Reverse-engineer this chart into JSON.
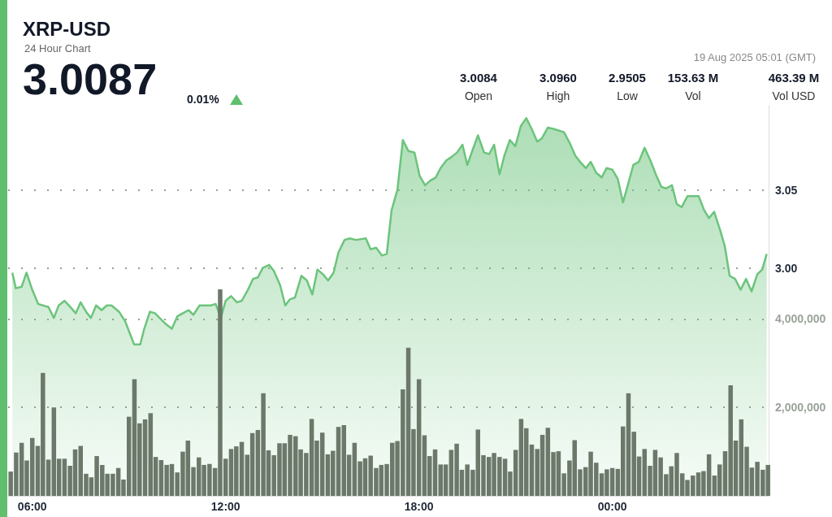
{
  "chart_data": {
    "type": "area",
    "title": "XRP-USD",
    "subtitle": "24 Hour Chart",
    "annotations": [
      "3.0087",
      "0.01%",
      "19 Aug 2025 05:01 (GMT)",
      "3.0084",
      "Open",
      "3.0960",
      "High",
      "2.9505",
      "Low",
      "153.63 M",
      "Vol",
      "463.39 M",
      "Vol USD"
    ],
    "xlim": [
      5.25,
      28.85
    ],
    "xticks": [
      {
        "value": 6,
        "label": "06:00"
      },
      {
        "value": 12,
        "label": "12:00"
      },
      {
        "value": 18,
        "label": "18:00"
      },
      {
        "value": 24,
        "label": "00:00"
      }
    ],
    "ylim": [
      2.854,
      3.104
    ],
    "yticks": [
      {
        "value": 3,
        "label": "3.00"
      },
      3.05
    ],
    "y2lim": [
      0,
      8825000
    ],
    "y2ticks": [
      {
        "value": 2000000,
        "label": "2,000,000"
      },
      {
        "value": 4000000,
        "label": "4,000,000"
      }
    ],
    "grid": "y",
    "series": [
      {
        "color": "#6cc47c",
        "x": [
          5.38,
          5.49,
          5.67,
          5.82,
          6.0,
          6.18,
          6.5,
          6.67,
          6.82,
          7.0,
          7.18,
          7.35,
          7.5,
          7.67,
          7.82,
          7.98,
          8.15,
          8.31,
          8.46,
          8.69,
          8.88,
          9.16,
          9.35,
          9.46,
          9.65,
          9.81,
          10.0,
          10.15,
          10.33,
          10.5,
          10.67,
          10.85,
          11.0,
          11.19,
          11.38,
          11.54,
          11.69,
          11.85,
          12.0,
          12.17,
          12.35,
          12.5,
          12.69,
          12.85,
          13.0,
          13.15,
          13.35,
          13.5,
          13.69,
          13.85,
          14.0,
          14.15,
          14.35,
          14.52,
          14.69,
          14.85,
          15.02,
          15.18,
          15.35,
          15.5,
          15.69,
          15.85,
          16.04,
          16.35,
          16.5,
          16.67,
          16.85,
          17.0,
          17.15,
          17.33,
          17.5,
          17.67,
          17.86,
          18.02,
          18.19,
          18.35,
          18.52,
          18.67,
          18.85,
          19.0,
          19.18,
          19.35,
          19.5,
          19.67,
          19.83,
          20.02,
          20.18,
          20.33,
          20.5,
          20.65,
          20.82,
          20.99,
          21.16,
          21.33,
          21.5,
          21.67,
          21.81,
          22.0,
          22.19,
          22.35,
          22.5,
          22.68,
          22.85,
          23.0,
          23.18,
          23.33,
          23.5,
          23.67,
          23.82,
          24.0,
          24.17,
          24.33,
          24.48,
          24.65,
          24.82,
          25.0,
          25.18,
          25.35,
          25.52,
          25.67,
          25.85,
          26.0,
          26.15,
          26.33,
          26.5,
          26.68,
          26.85,
          27.0,
          27.16,
          27.35,
          27.49,
          27.64,
          27.81,
          27.98,
          28.15,
          28.32,
          28.5,
          28.65,
          28.79
        ],
        "values": [
          2.997,
          2.987,
          2.988,
          2.997,
          2.986,
          2.977,
          2.975,
          2.968,
          2.976,
          2.979,
          2.975,
          2.971,
          2.978,
          2.972,
          2.968,
          2.976,
          2.973,
          2.976,
          2.976,
          2.972,
          2.966,
          2.951,
          2.951,
          2.96,
          2.972,
          2.971,
          2.967,
          2.964,
          2.961,
          2.969,
          2.971,
          2.973,
          2.97,
          2.976,
          2.976,
          2.976,
          2.977,
          2.968,
          2.979,
          2.982,
          2.978,
          2.979,
          2.986,
          2.993,
          2.994,
          3.0,
          3.002,
          2.998,
          2.989,
          2.976,
          2.98,
          2.981,
          2.995,
          2.992,
          2.983,
          2.999,
          2.996,
          2.992,
          2.997,
          3.01,
          3.018,
          3.019,
          3.018,
          3.019,
          3.012,
          3.013,
          3.008,
          3.009,
          3.037,
          3.05,
          3.082,
          3.075,
          3.074,
          3.059,
          3.053,
          3.056,
          3.058,
          3.064,
          3.069,
          3.071,
          3.074,
          3.079,
          3.066,
          3.076,
          3.085,
          3.074,
          3.073,
          3.079,
          3.06,
          3.072,
          3.082,
          3.078,
          3.091,
          3.096,
          3.089,
          3.081,
          3.083,
          3.09,
          3.089,
          3.088,
          3.087,
          3.08,
          3.072,
          3.068,
          3.064,
          3.068,
          3.061,
          3.058,
          3.064,
          3.063,
          3.057,
          3.042,
          3.053,
          3.066,
          3.068,
          3.077,
          3.069,
          3.06,
          3.052,
          3.051,
          3.053,
          3.041,
          3.039,
          3.046,
          3.046,
          3.046,
          3.037,
          3.032,
          3.036,
          3.024,
          3.014,
          2.995,
          2.993,
          2.986,
          2.993,
          2.985,
          2.996,
          2.999,
          3.009
        ]
      },
      {
        "type": "bar",
        "axis": "y2",
        "color": "#6b786a",
        "x": [
          5.33,
          5.5,
          5.67,
          5.83,
          6,
          6.17,
          6.33,
          6.5,
          6.67,
          6.83,
          7,
          7.17,
          7.33,
          7.5,
          7.67,
          7.83,
          8,
          8.17,
          8.33,
          8.5,
          8.67,
          8.83,
          9,
          9.17,
          9.33,
          9.5,
          9.67,
          9.83,
          10,
          10.17,
          10.33,
          10.5,
          10.67,
          10.83,
          11,
          11.17,
          11.33,
          11.5,
          11.67,
          11.83,
          12,
          12.17,
          12.33,
          12.5,
          12.67,
          12.83,
          13,
          13.17,
          13.33,
          13.5,
          13.67,
          13.83,
          14,
          14.17,
          14.33,
          14.5,
          14.67,
          14.83,
          15,
          15.17,
          15.33,
          15.5,
          15.67,
          15.83,
          16,
          16.17,
          16.33,
          16.5,
          16.67,
          16.83,
          17,
          17.17,
          17.33,
          17.5,
          17.67,
          17.83,
          18,
          18.17,
          18.33,
          18.5,
          18.67,
          18.83,
          19,
          19.17,
          19.33,
          19.5,
          19.67,
          19.83,
          20,
          20.17,
          20.33,
          20.5,
          20.67,
          20.83,
          21,
          21.17,
          21.33,
          21.5,
          21.67,
          21.83,
          22,
          22.17,
          22.33,
          22.5,
          22.67,
          22.83,
          23,
          23.17,
          23.33,
          23.5,
          23.67,
          23.83,
          24,
          24.17,
          24.33,
          24.5,
          24.67,
          24.83,
          25,
          25.17,
          25.33,
          25.5,
          25.67,
          25.83,
          26,
          26.17,
          26.33,
          26.5,
          26.67,
          26.83,
          27,
          27.17,
          27.33,
          27.5,
          27.67,
          27.83,
          28,
          28.17,
          28.33,
          28.5,
          28.67,
          28.83
        ],
        "values": [
          550000,
          980000,
          1200000,
          800000,
          1310000,
          1130000,
          2780000,
          820000,
          2000000,
          840000,
          840000,
          680000,
          1050000,
          1130000,
          500000,
          420000,
          900000,
          700000,
          500000,
          500000,
          630000,
          370000,
          1790000,
          2640000,
          1640000,
          1730000,
          1870000,
          880000,
          810000,
          700000,
          720000,
          530000,
          1000000,
          1250000,
          650000,
          870000,
          700000,
          720000,
          630000,
          4670000,
          840000,
          1060000,
          1120000,
          1220000,
          930000,
          1420000,
          1490000,
          2320000,
          1030000,
          920000,
          1190000,
          1190000,
          1380000,
          1350000,
          1050000,
          970000,
          1740000,
          1250000,
          1430000,
          940000,
          1020000,
          1560000,
          1600000,
          930000,
          1200000,
          780000,
          850000,
          910000,
          630000,
          700000,
          720000,
          1200000,
          1240000,
          2410000,
          3350000,
          1510000,
          2640000,
          1370000,
          900000,
          1050000,
          710000,
          710000,
          1040000,
          1180000,
          590000,
          710000,
          590000,
          1500000,
          920000,
          880000,
          970000,
          880000,
          840000,
          550000,
          1040000,
          1740000,
          1530000,
          1160000,
          1060000,
          1380000,
          1540000,
          990000,
          1010000,
          510000,
          800000,
          1260000,
          600000,
          650000,
          1000000,
          750000,
          510000,
          600000,
          630000,
          610000,
          1570000,
          2320000,
          1450000,
          890000,
          1060000,
          680000,
          1040000,
          870000,
          490000,
          670000,
          970000,
          510000,
          360000,
          460000,
          530000,
          560000,
          940000,
          460000,
          710000,
          1010000,
          2500000,
          1250000,
          1730000,
          1110000,
          640000,
          770000,
          590000,
          700000
        ]
      }
    ]
  }
}
